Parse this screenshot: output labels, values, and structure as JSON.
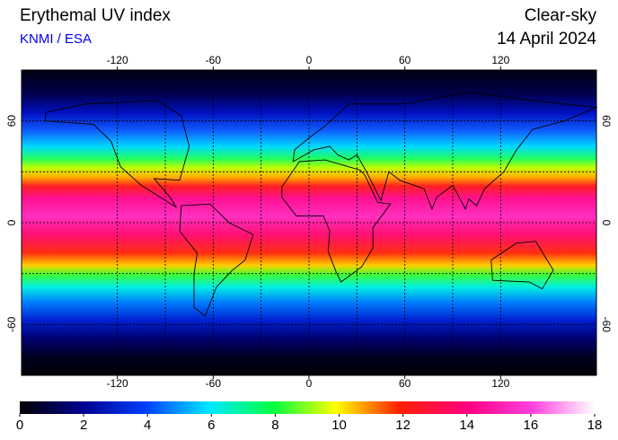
{
  "header": {
    "title": "Erythemal UV index",
    "source": "KNMI / ESA",
    "condition": "Clear-sky",
    "date": "14 April 2024"
  },
  "map": {
    "xlim": [
      -180,
      180
    ],
    "ylim": [
      -90,
      90
    ],
    "xticks": [
      -120,
      -60,
      0,
      60,
      120
    ],
    "yticks": [
      60,
      0,
      -60
    ],
    "grid": true
  },
  "colorbar": {
    "lim": [
      0,
      18
    ],
    "ticks": [
      0,
      2,
      4,
      6,
      8,
      10,
      12,
      14,
      16,
      18
    ]
  }
}
